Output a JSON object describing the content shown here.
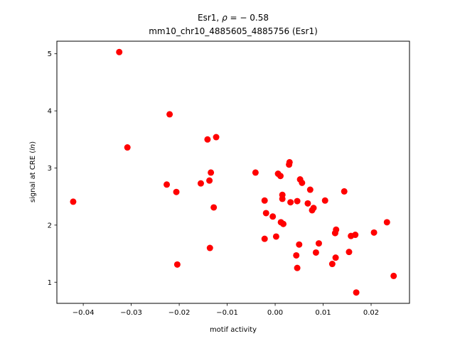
{
  "chart_data": {
    "type": "scatter",
    "title_line1_prefix": "Esr1, ",
    "title_rho_symbol": "ρ",
    "title_rho_value": " = − 0.58",
    "title_line2": "mm10_chr10_4885605_4885756 (Esr1)",
    "xlabel": "motif activity",
    "ylabel_prefix": "signal at CRE (",
    "ylabel_italic": "ln",
    "ylabel_suffix": ")",
    "xlim": [
      -0.0455,
      0.028
    ],
    "ylim": [
      0.63,
      5.22
    ],
    "x_ticks": [
      -0.04,
      -0.03,
      -0.02,
      -0.01,
      0.0,
      0.01,
      0.02
    ],
    "x_tick_labels": [
      "−0.04",
      "−0.03",
      "−0.02",
      "−0.01",
      "0.00",
      "0.01",
      "0.02"
    ],
    "y_ticks": [
      1,
      2,
      3,
      4,
      5
    ],
    "y_tick_labels": [
      "1",
      "2",
      "3",
      "4",
      "5"
    ],
    "marker_color": "#ff0000",
    "grid": false,
    "points": [
      {
        "x": -0.0421,
        "y": 2.41
      },
      {
        "x": -0.0325,
        "y": 5.03
      },
      {
        "x": -0.0308,
        "y": 3.36
      },
      {
        "x": -0.022,
        "y": 3.94
      },
      {
        "x": -0.0226,
        "y": 2.71
      },
      {
        "x": -0.0206,
        "y": 2.58
      },
      {
        "x": -0.0204,
        "y": 1.31
      },
      {
        "x": -0.0155,
        "y": 2.73
      },
      {
        "x": -0.0141,
        "y": 3.5
      },
      {
        "x": -0.0123,
        "y": 3.54
      },
      {
        "x": -0.0137,
        "y": 2.78
      },
      {
        "x": -0.0134,
        "y": 2.92
      },
      {
        "x": -0.0128,
        "y": 2.31
      },
      {
        "x": -0.0136,
        "y": 1.6
      },
      {
        "x": -0.0041,
        "y": 2.92
      },
      {
        "x": -0.0022,
        "y": 2.43
      },
      {
        "x": -0.0019,
        "y": 2.21
      },
      {
        "x": -0.0022,
        "y": 1.76
      },
      {
        "x": -0.0005,
        "y": 2.15
      },
      {
        "x": 0.0002,
        "y": 1.8
      },
      {
        "x": 0.0006,
        "y": 2.9
      },
      {
        "x": 0.0011,
        "y": 2.86
      },
      {
        "x": 0.0015,
        "y": 2.53
      },
      {
        "x": 0.0015,
        "y": 2.46
      },
      {
        "x": 0.0012,
        "y": 2.05
      },
      {
        "x": 0.0017,
        "y": 2.02
      },
      {
        "x": 0.0029,
        "y": 3.06
      },
      {
        "x": 0.003,
        "y": 3.1
      },
      {
        "x": 0.0032,
        "y": 2.4
      },
      {
        "x": 0.0046,
        "y": 2.42
      },
      {
        "x": 0.0044,
        "y": 1.47
      },
      {
        "x": 0.0046,
        "y": 1.25
      },
      {
        "x": 0.005,
        "y": 1.66
      },
      {
        "x": 0.0052,
        "y": 2.8
      },
      {
        "x": 0.0056,
        "y": 2.74
      },
      {
        "x": 0.0068,
        "y": 2.38
      },
      {
        "x": 0.0073,
        "y": 2.62
      },
      {
        "x": 0.0077,
        "y": 2.26
      },
      {
        "x": 0.008,
        "y": 2.3
      },
      {
        "x": 0.0085,
        "y": 1.52
      },
      {
        "x": 0.0091,
        "y": 1.68
      },
      {
        "x": 0.0104,
        "y": 2.43
      },
      {
        "x": 0.0119,
        "y": 1.32
      },
      {
        "x": 0.0125,
        "y": 1.86
      },
      {
        "x": 0.0127,
        "y": 1.92
      },
      {
        "x": 0.0126,
        "y": 1.43
      },
      {
        "x": 0.0144,
        "y": 2.59
      },
      {
        "x": 0.0154,
        "y": 1.53
      },
      {
        "x": 0.0158,
        "y": 1.81
      },
      {
        "x": 0.0167,
        "y": 1.83
      },
      {
        "x": 0.0169,
        "y": 0.82
      },
      {
        "x": 0.0206,
        "y": 1.87
      },
      {
        "x": 0.0233,
        "y": 2.05
      },
      {
        "x": 0.0247,
        "y": 1.11
      }
    ]
  }
}
